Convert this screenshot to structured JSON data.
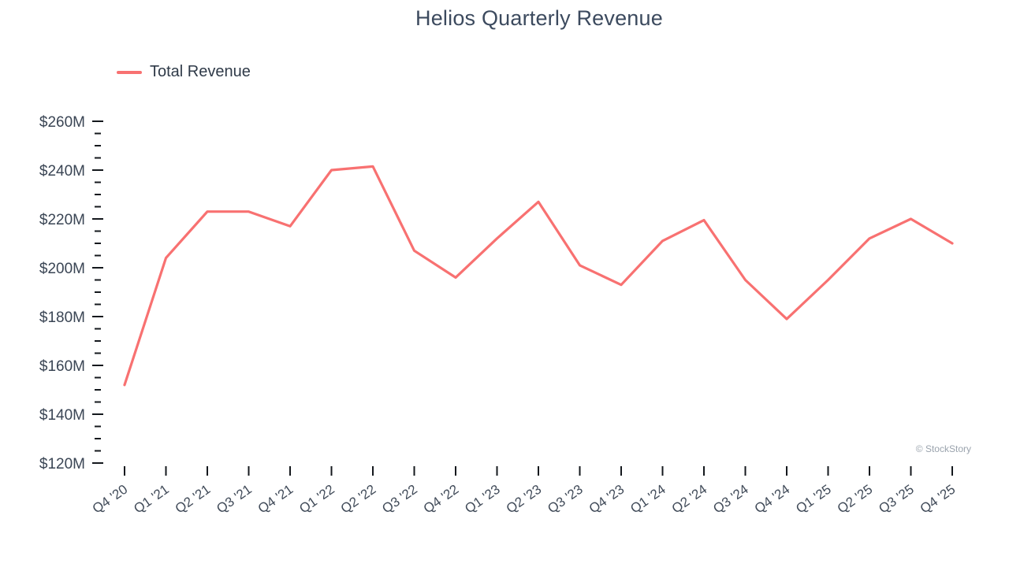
{
  "chart_data": {
    "type": "line",
    "title": "Helios Quarterly Revenue",
    "categories": [
      "Q4 '20",
      "Q1 '21",
      "Q2 '21",
      "Q3 '21",
      "Q4 '21",
      "Q1 '22",
      "Q2 '22",
      "Q3 '22",
      "Q4 '22",
      "Q1 '23",
      "Q2 '23",
      "Q3 '23",
      "Q4 '23",
      "Q1 '24",
      "Q2 '24",
      "Q3 '24",
      "Q4 '24",
      "Q1 '25",
      "Q2 '25",
      "Q3 '25",
      "Q4 '25"
    ],
    "series": [
      {
        "name": "Total Revenue",
        "color": "#f87171",
        "values": [
          152,
          204,
          223,
          223,
          217,
          240,
          241.5,
          207,
          196,
          212,
          227,
          201,
          193,
          211,
          219.5,
          195,
          179,
          195,
          212,
          220,
          210
        ]
      }
    ],
    "ylim": [
      120,
      260
    ],
    "ytick_step": 20,
    "ytick_minor_step": 5,
    "y_prefix": "$",
    "y_suffix": "M",
    "xlabel": "",
    "ylabel": "",
    "grid": false,
    "legend_position": "top-left"
  },
  "watermark": "© StockStory"
}
